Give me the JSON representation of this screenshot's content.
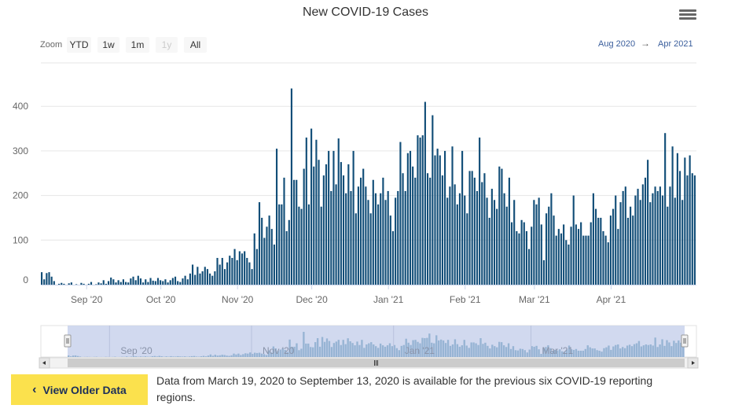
{
  "title": "New COVID-19 Cases",
  "zoom": {
    "label": "Zoom",
    "buttons": [
      {
        "label": "YTD",
        "enabled": true
      },
      {
        "label": "1w",
        "enabled": true
      },
      {
        "label": "1m",
        "enabled": true
      },
      {
        "label": "1y",
        "enabled": false
      },
      {
        "label": "All",
        "enabled": true
      }
    ]
  },
  "range": {
    "from": "Aug 2020",
    "to": "Apr 2021"
  },
  "colors": {
    "bar": "#124e78",
    "navigator_fill": "#c9d2ec",
    "navigator_series": "#6f9bc2",
    "button": "#fbe14d"
  },
  "navigator_labels": [
    "Sep '20",
    "Nov '20",
    "Jan '21",
    "Mar '21"
  ],
  "chart_data": {
    "type": "bar",
    "title": "New COVID-19 Cases",
    "xlabel": "",
    "ylabel": "",
    "x_start": "2020-08-14",
    "ylim": [
      0,
      440
    ],
    "yticks": [
      0,
      100,
      200,
      300,
      400
    ],
    "xticks": [
      {
        "date": "2020-09-01",
        "label": "Sep '20"
      },
      {
        "date": "2020-10-01",
        "label": "Oct '20"
      },
      {
        "date": "2020-11-01",
        "label": "Nov '20"
      },
      {
        "date": "2020-12-01",
        "label": "Dec '20"
      },
      {
        "date": "2021-01-01",
        "label": "Jan '21"
      },
      {
        "date": "2021-02-01",
        "label": "Feb '21"
      },
      {
        "date": "2021-03-01",
        "label": "Mar '21"
      },
      {
        "date": "2021-04-01",
        "label": "Apr '21"
      }
    ],
    "grid": true,
    "legend": "none",
    "values": [
      28,
      12,
      26,
      28,
      18,
      8,
      0,
      2,
      4,
      2,
      0,
      3,
      5,
      0,
      1,
      0,
      4,
      2,
      0,
      2,
      6,
      0,
      1,
      5,
      3,
      10,
      2,
      8,
      16,
      12,
      5,
      10,
      6,
      12,
      6,
      5,
      14,
      18,
      10,
      20,
      14,
      5,
      12,
      6,
      15,
      9,
      8,
      15,
      10,
      8,
      12,
      5,
      10,
      15,
      18,
      8,
      6,
      14,
      20,
      12,
      25,
      45,
      22,
      40,
      25,
      30,
      40,
      35,
      25,
      20,
      30,
      60,
      45,
      60,
      35,
      50,
      65,
      60,
      80,
      55,
      75,
      70,
      75,
      60,
      50,
      35,
      115,
      80,
      185,
      150,
      105,
      130,
      155,
      125,
      90,
      305,
      180,
      180,
      240,
      120,
      145,
      440,
      235,
      235,
      175,
      170,
      260,
      330,
      180,
      350,
      265,
      325,
      280,
      175,
      245,
      270,
      300,
      210,
      300,
      225,
      328,
      275,
      245,
      205,
      270,
      210,
      300,
      160,
      220,
      240,
      260,
      220,
      190,
      160,
      235,
      205,
      180,
      205,
      240,
      190,
      210,
      155,
      120,
      195,
      210,
      320,
      250,
      210,
      295,
      300,
      265,
      240,
      335,
      330,
      335,
      410,
      250,
      240,
      380,
      290,
      305,
      290,
      245,
      300,
      195,
      220,
      310,
      225,
      180,
      205,
      300,
      200,
      160,
      255,
      255,
      240,
      210,
      330,
      230,
      250,
      195,
      150,
      215,
      190,
      170,
      265,
      260,
      205,
      175,
      240,
      140,
      190,
      120,
      115,
      145,
      140,
      120,
      80,
      130,
      190,
      180,
      195,
      135,
      55,
      160,
      175,
      205,
      155,
      110,
      125,
      115,
      135,
      100,
      90,
      130,
      200,
      135,
      125,
      140,
      110,
      110,
      110,
      140,
      205,
      170,
      150,
      150,
      120,
      110,
      95,
      155,
      170,
      200,
      125,
      185,
      210,
      220,
      150,
      175,
      155,
      200,
      215,
      190,
      225,
      240,
      280,
      185,
      205,
      220,
      210,
      220,
      200,
      340,
      175,
      220,
      310,
      195,
      295,
      255,
      190,
      285,
      245,
      290,
      250,
      245
    ]
  },
  "view_older_label": "View Older Data",
  "older_note": "Data from March 19, 2020 to September 13, 2020 is available for the previous six COVID-19 reporting regions."
}
